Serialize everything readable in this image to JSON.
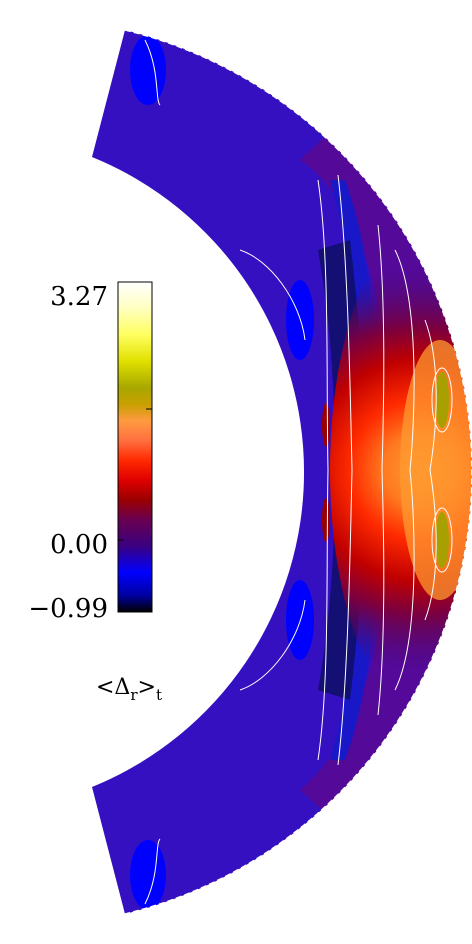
{
  "colorbar": {
    "max_label": "3.27",
    "zero_label": "0.00",
    "min_label": "−0.99",
    "title_main": "<Δ",
    "title_sub": "r",
    "title_close": ">",
    "title_sub2": "t",
    "range": [
      -0.99,
      3.27
    ],
    "stops": [
      "#000000",
      "#0000a0",
      "#0000ff",
      "#3a0080",
      "#6a0050",
      "#9a0000",
      "#e00000",
      "#ff2a00",
      "#ff7040",
      "#ff9a40",
      "#c8a000",
      "#a8a800",
      "#e0e000",
      "#ffff60",
      "#ffffc0",
      "#ffffff"
    ]
  },
  "field_colors": {
    "deep_negative": "#10106a",
    "negative": "#1818c8",
    "background": "#3410c0",
    "weak_positive": "#5a0890",
    "red": "#c80000",
    "bright_red": "#ff2000",
    "orange": "#ff9a30",
    "olive": "#a8a000",
    "contour": "#ffffff"
  }
}
